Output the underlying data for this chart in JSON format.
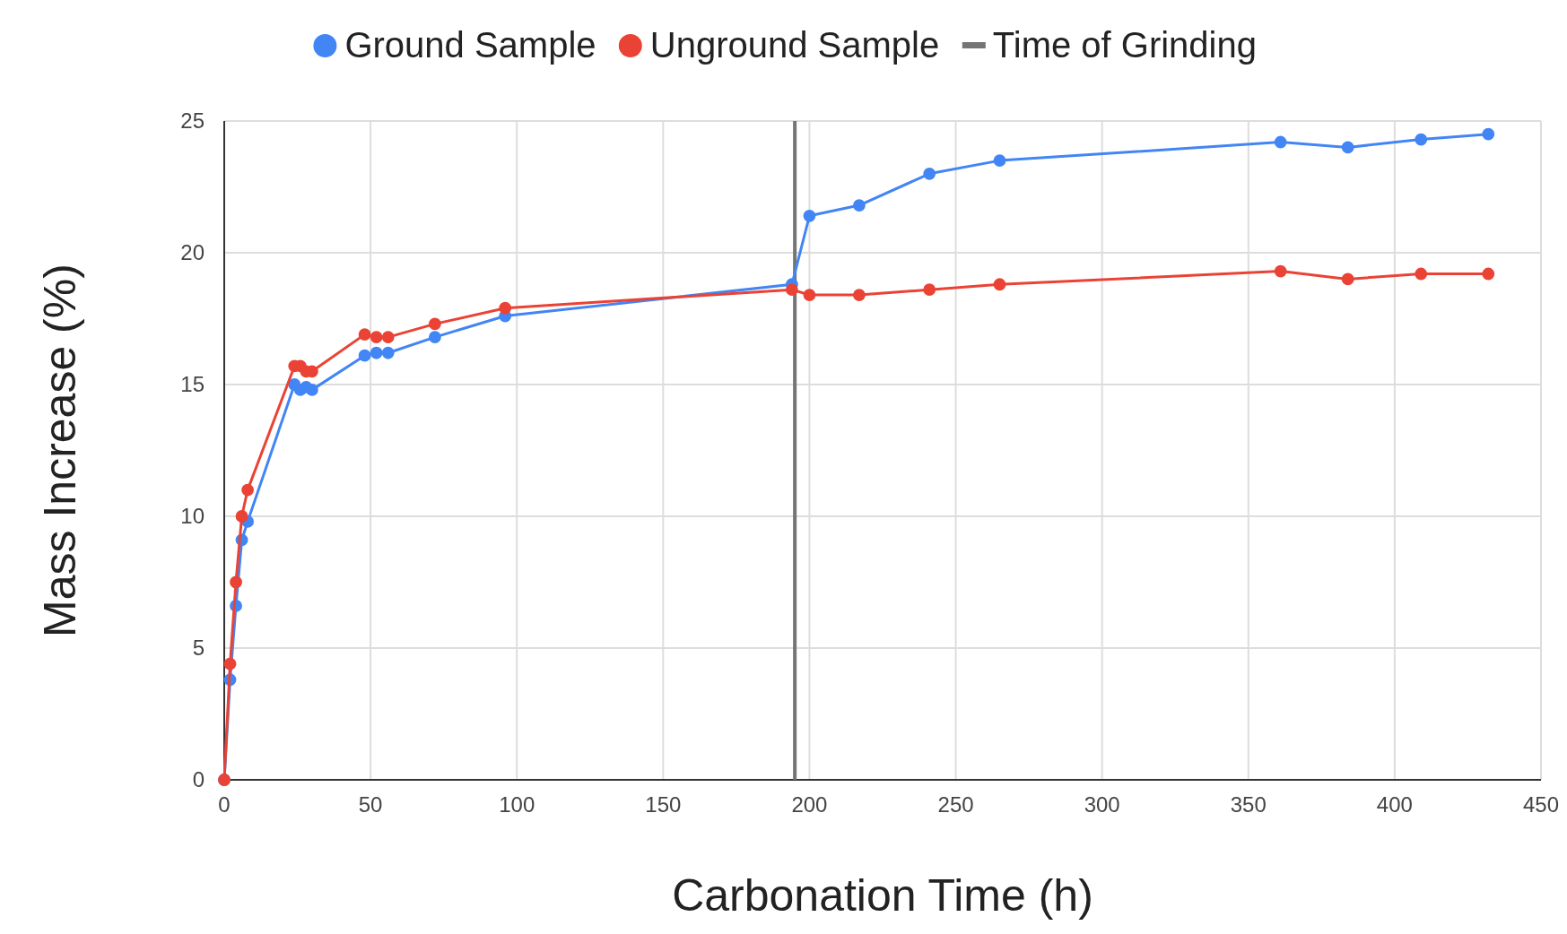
{
  "chart_data": {
    "type": "line",
    "xlabel": "Carbonation Time (h)",
    "ylabel": "Mass Increase (%)",
    "x": [
      0,
      2,
      4,
      6,
      8,
      24,
      26,
      28,
      30,
      48,
      52,
      56,
      72,
      96,
      194,
      200,
      217,
      241,
      265,
      361,
      384,
      409,
      432
    ],
    "series": [
      {
        "name": "Ground Sample",
        "color": "#4285f4",
        "values": [
          0,
          3.8,
          6.6,
          9.1,
          9.8,
          15.0,
          14.8,
          14.9,
          14.8,
          16.1,
          16.2,
          16.2,
          16.8,
          17.6,
          18.8,
          21.4,
          21.8,
          23.0,
          23.5,
          24.2,
          24.0,
          24.3,
          24.5
        ]
      },
      {
        "name": "Unground Sample",
        "color": "#ea4335",
        "values": [
          0,
          4.4,
          7.5,
          10.0,
          11.0,
          15.7,
          15.7,
          15.5,
          15.5,
          16.9,
          16.8,
          16.8,
          17.3,
          17.9,
          18.6,
          18.4,
          18.4,
          18.6,
          18.8,
          19.3,
          19.0,
          19.2,
          19.2
        ]
      }
    ],
    "ref_lines": [
      {
        "axis": "x",
        "value": 195,
        "label": "Time of Grinding",
        "color": "#757575"
      }
    ],
    "xlim": [
      0,
      450
    ],
    "xticks": [
      0,
      50,
      100,
      150,
      200,
      250,
      300,
      350,
      400,
      450
    ],
    "ylim": [
      0,
      25
    ],
    "yticks": [
      0,
      5,
      10,
      15,
      20,
      25
    ],
    "grid": true,
    "legend": "top",
    "marker": "circle"
  }
}
